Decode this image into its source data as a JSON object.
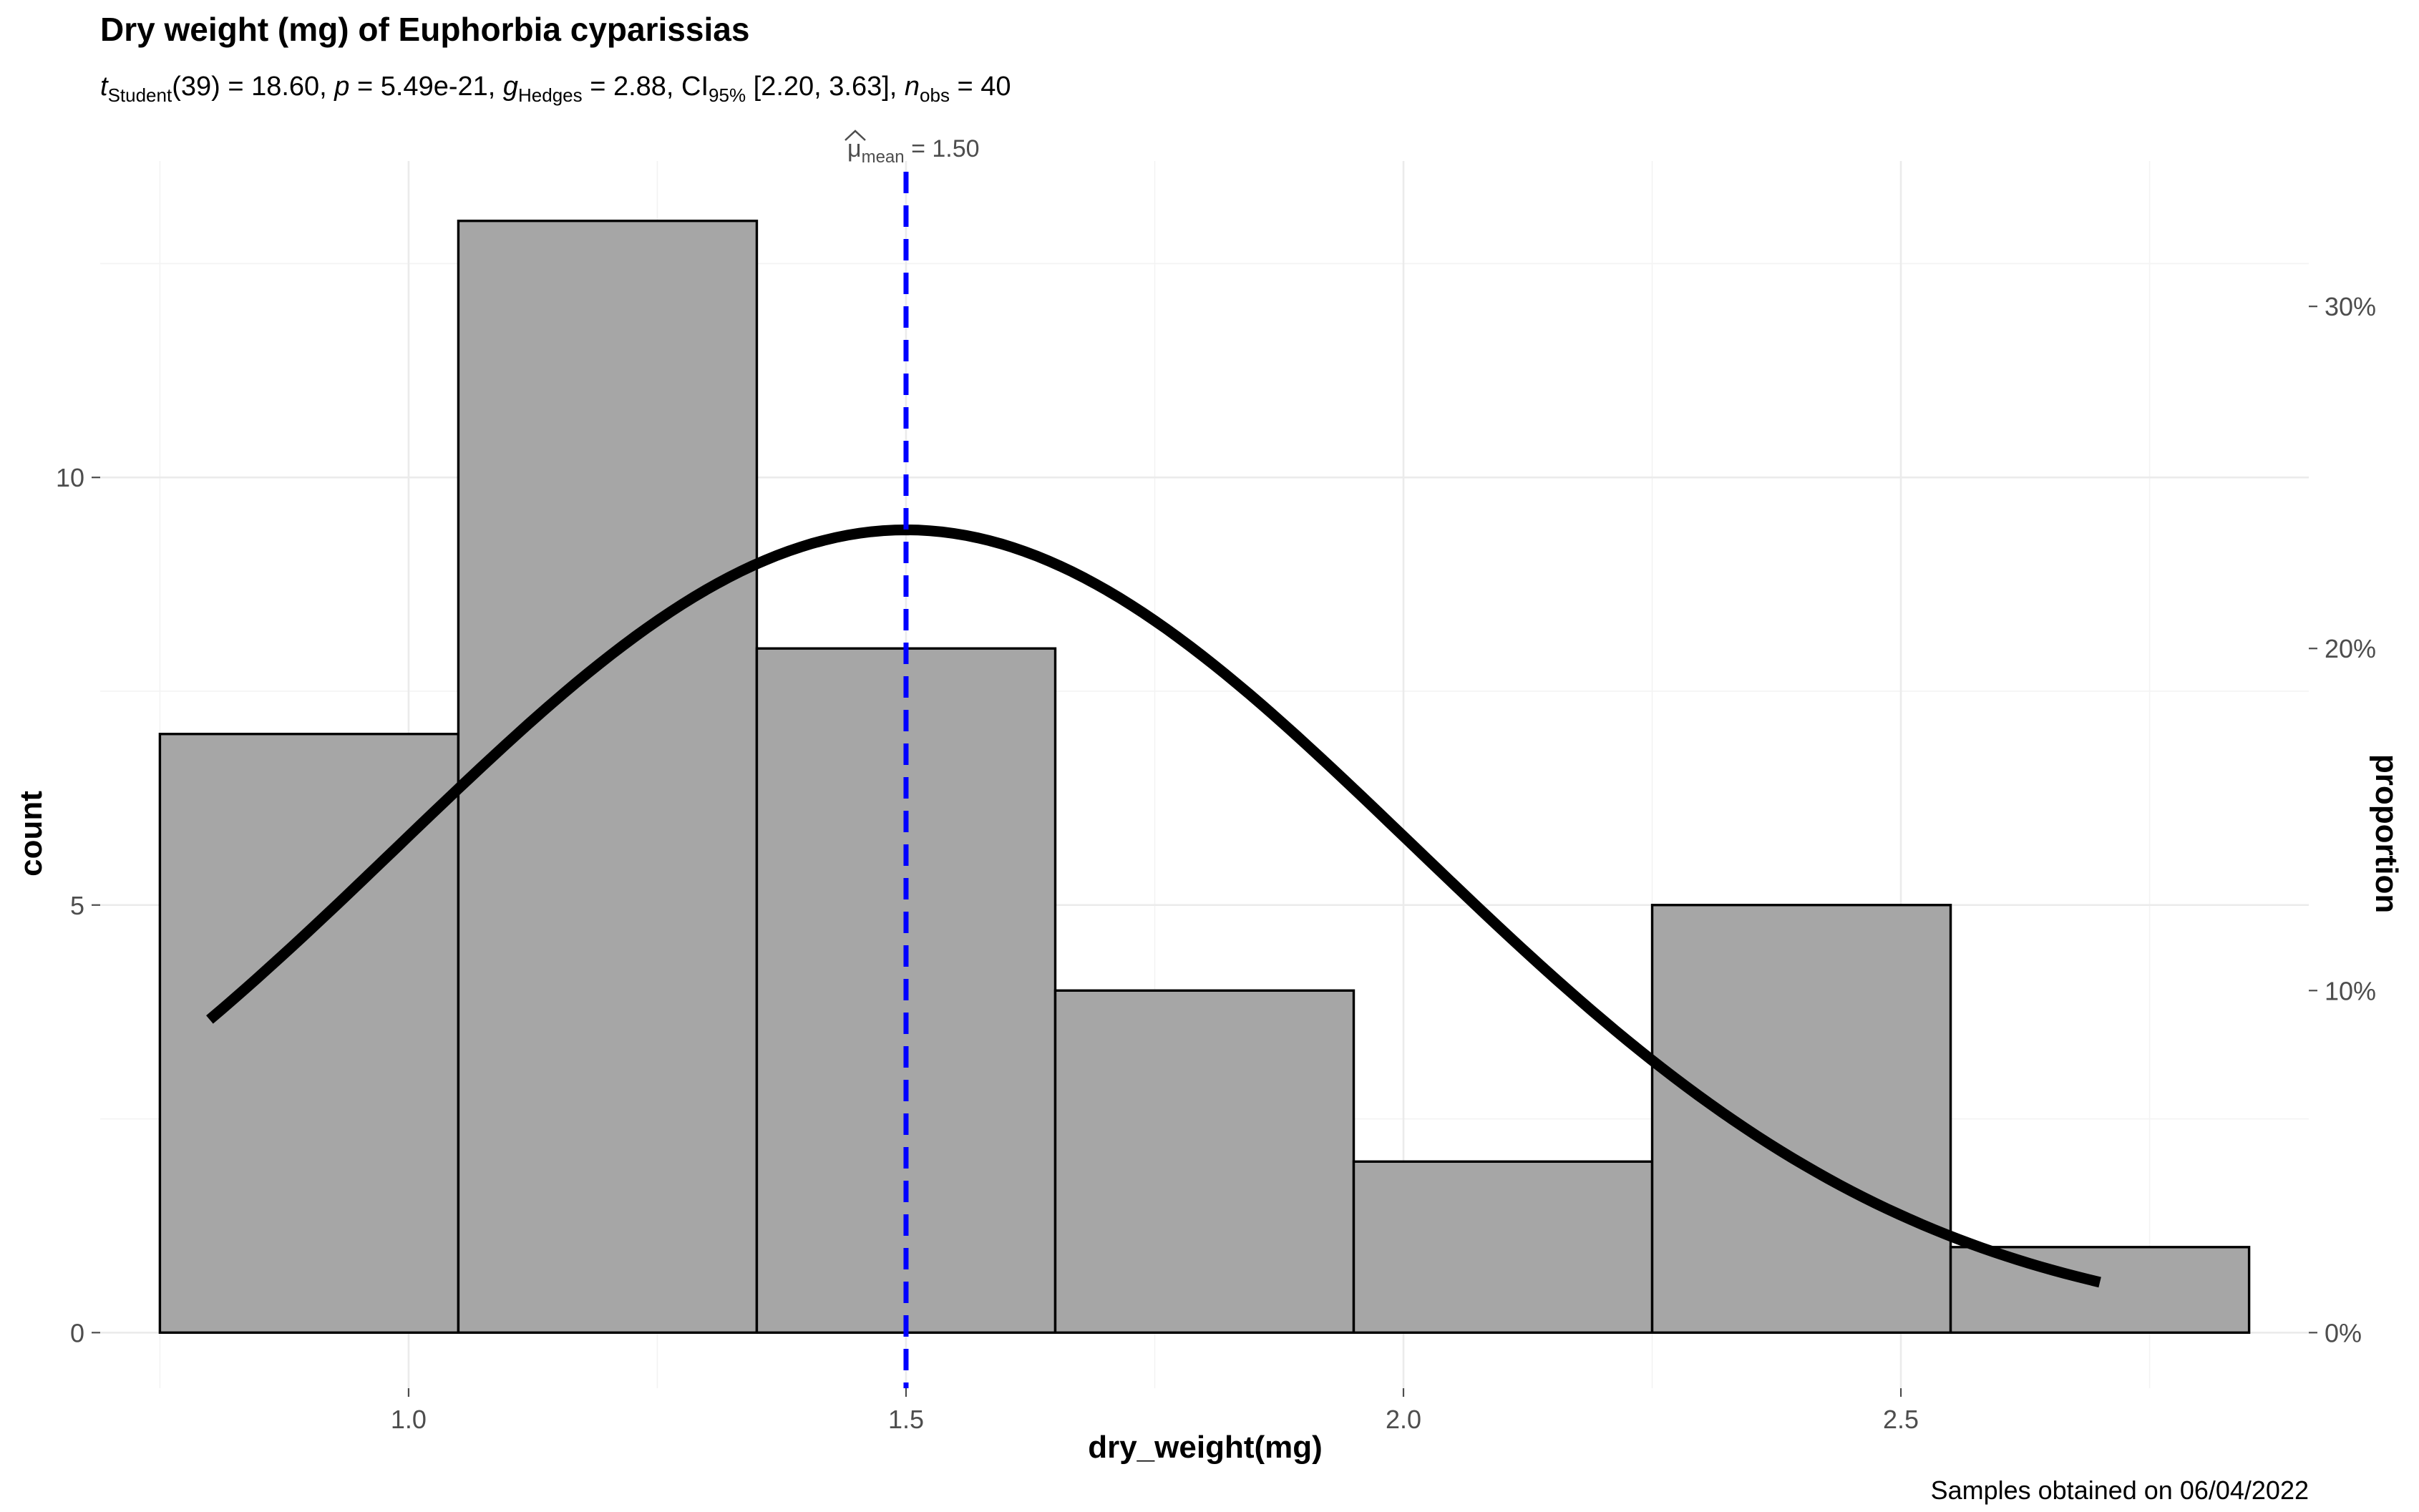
{
  "chart_data": {
    "type": "bar",
    "title": "Dry weight (mg) of Euphorbia cyparissias",
    "subtitle": {
      "stat_symbol": "t",
      "stat_subscript": "Student",
      "df_value": "(39) = 18.60, ",
      "p_symbol": "p",
      "p_value": " = 5.49e-21, ",
      "es_symbol": "g",
      "es_subscript": "Hedges",
      "es_value": " = 2.88, CI",
      "ci_subscript": "95%",
      "ci_value": " [2.20, 3.63], ",
      "n_symbol": "n",
      "n_subscript": "obs",
      "n_value": " = 40"
    },
    "caption": "Samples obtained on 06/04/2022",
    "xlabel": "dry_weight(mg)",
    "ylabel": "count",
    "y2label": "proportion",
    "xlim": [
      0.69,
      2.91
    ],
    "ylim": [
      -0.65,
      13.7
    ],
    "xticks": [
      {
        "value": 1.0,
        "label": "1.0"
      },
      {
        "value": 1.5,
        "label": "1.5"
      },
      {
        "value": 2.0,
        "label": "2.0"
      },
      {
        "value": 2.5,
        "label": "2.5"
      }
    ],
    "yticks": [
      {
        "value": 0,
        "label": "0"
      },
      {
        "value": 5,
        "label": "5"
      },
      {
        "value": 10,
        "label": "10"
      }
    ],
    "y2ticks": [
      {
        "value": 0,
        "label": "0%"
      },
      {
        "value": 0.1,
        "label": "10%"
      },
      {
        "value": 0.2,
        "label": "20%"
      },
      {
        "value": 0.3,
        "label": "30%"
      }
    ],
    "n_obs": 40,
    "bins": [
      {
        "x0": 0.75,
        "x1": 1.05,
        "count": 7
      },
      {
        "x0": 1.05,
        "x1": 1.35,
        "count": 13
      },
      {
        "x0": 1.35,
        "x1": 1.65,
        "count": 8
      },
      {
        "x0": 1.65,
        "x1": 1.95,
        "count": 4
      },
      {
        "x0": 1.95,
        "x1": 2.25,
        "count": 2
      },
      {
        "x0": 2.25,
        "x1": 2.55,
        "count": 5
      },
      {
        "x0": 2.55,
        "x1": 2.85,
        "count": 1
      }
    ],
    "density_curve": {
      "mean": 1.5,
      "sd": 0.51,
      "x_range": [
        0.8,
        2.7
      ],
      "bin_width": 0.3
    },
    "mean_line": {
      "value": 1.5,
      "label_symbol": "μ",
      "label_subscript": "mean",
      "label_value": " = 1.50"
    },
    "grid": true,
    "colors": {
      "bar_fill": "#a6a6a6",
      "bar_stroke": "#000000",
      "mean_line": "#0000ff",
      "curve": "#000000"
    }
  }
}
